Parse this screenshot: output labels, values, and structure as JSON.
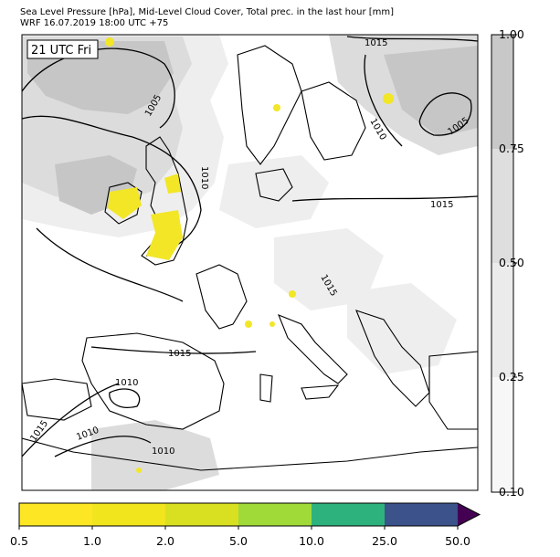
{
  "header": {
    "title_line1": "Sea Level Pressure [hPa], Mid-Level Cloud Cover, Total prec. in the last hour [mm]",
    "title_line2": "WRF 16.07.2019 18:00 UTC +75"
  },
  "map": {
    "valid_time_label": "21 UTC Fri",
    "isobar_labels": [
      "1015",
      "1005",
      "1010",
      "1010",
      "1005",
      "1015",
      "1015",
      "1015",
      "1010",
      "1010",
      "1015",
      "1010"
    ],
    "colors": {
      "cloud_light": "#eeeeee",
      "cloud_mid": "#dcdcdc",
      "cloud_dark": "#c6c6c6",
      "precip_yellow": "#f2e627",
      "isobar": "#000000"
    }
  },
  "cloud_colorbar": {
    "ticks": [
      "1.00",
      "0.75",
      "0.50",
      "0.25",
      "0.10"
    ],
    "colors": [
      "#c8c8c8",
      "#dedede",
      "#ebebeb",
      "#f7f7f7"
    ]
  },
  "precip_colorbar": {
    "ticks": [
      "0.5",
      "1.0",
      "2.0",
      "5.0",
      "10.0",
      "25.0",
      "50.0"
    ],
    "colors": [
      "#fde725",
      "#f1e51d",
      "#d9e021",
      "#a0da39",
      "#2db27d",
      "#3b528b"
    ],
    "extend_color": "#440154"
  }
}
